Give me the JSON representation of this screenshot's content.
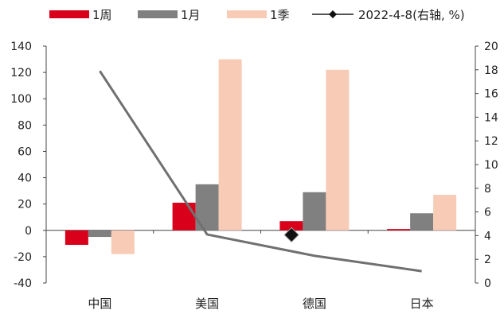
{
  "chart_data": {
    "type": "bar",
    "categories": [
      "中国",
      "美国",
      "德国",
      "日本"
    ],
    "series": [
      {
        "name": "1周",
        "values": [
          -11,
          21,
          7,
          1
        ],
        "color": "#d9001b",
        "kind": "bar"
      },
      {
        "name": "1月",
        "values": [
          -5,
          35,
          29,
          13
        ],
        "color": "#808080",
        "kind": "bar"
      },
      {
        "name": "1季",
        "values": [
          -18,
          130,
          122,
          27
        ],
        "color": "#f8cbb7",
        "kind": "bar"
      },
      {
        "name": "2022-4-8(右轴, %)",
        "values": [
          17.9,
          4.1,
          2.3,
          1.0
        ],
        "color": "#707070",
        "kind": "line",
        "axis": "right",
        "marker": "diamond",
        "marker_index": 1
      }
    ],
    "y_left": {
      "min": -40,
      "max": 140,
      "ticks": [
        -40,
        -20,
        0,
        20,
        40,
        60,
        80,
        100,
        120,
        140
      ]
    },
    "y_right": {
      "min": 0,
      "max": 20,
      "ticks": [
        0,
        2,
        4,
        6,
        8,
        10,
        12,
        14,
        16,
        18,
        20
      ]
    },
    "legend": "top",
    "grid": false
  }
}
